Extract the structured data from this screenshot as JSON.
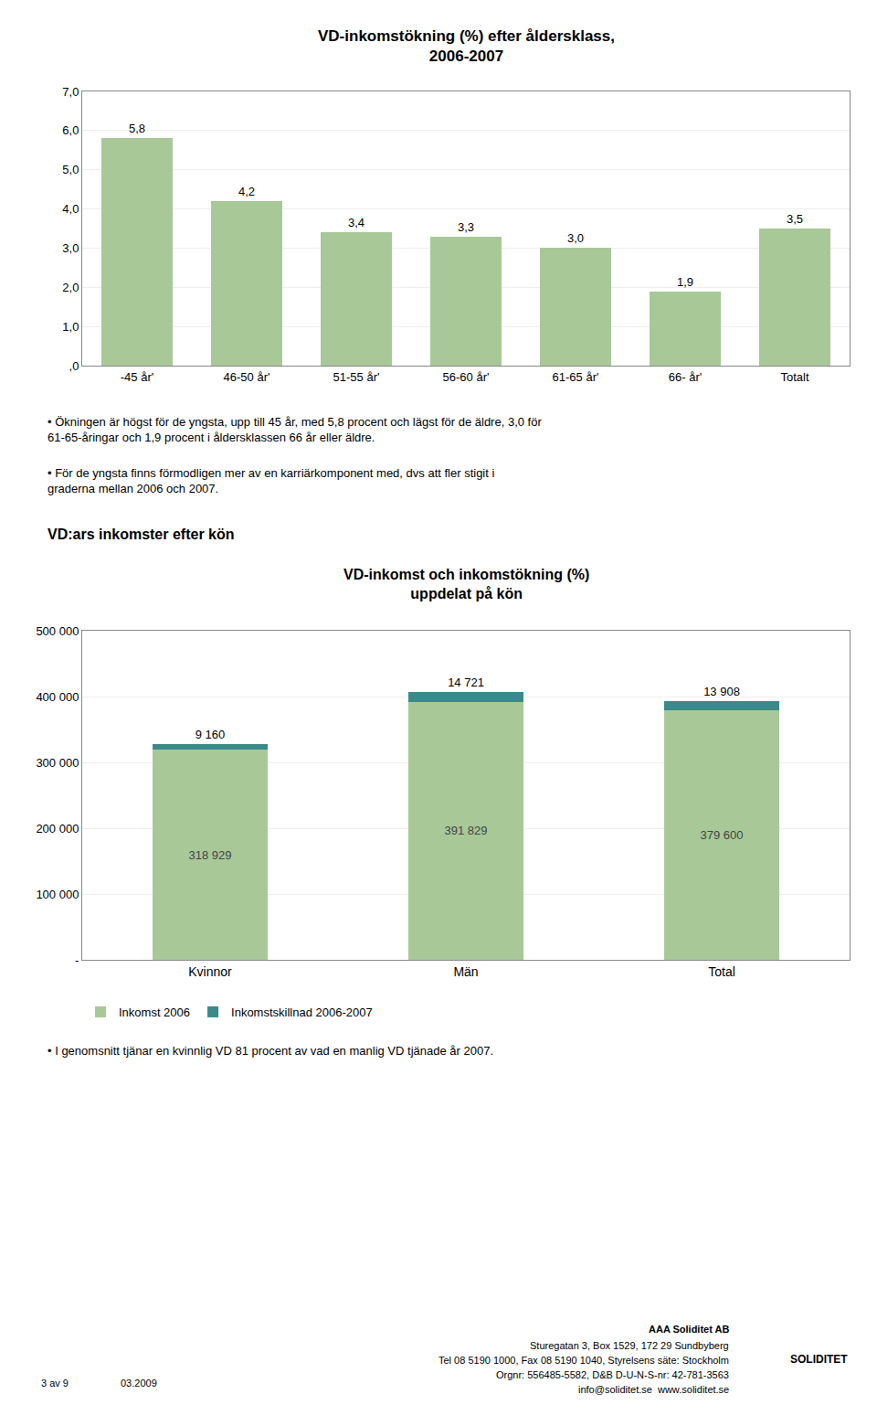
{
  "chart_data": [
    {
      "type": "bar",
      "title": "VD-inkomstökning (%) efter åldersklass,\n2006-2007",
      "categories": [
        "-45 år'",
        "46-50 år'",
        "51-55 år'",
        "56-60 år'",
        "61-65 år'",
        "66- år'",
        "Totalt"
      ],
      "values": [
        5.8,
        4.2,
        3.4,
        3.3,
        3.0,
        1.9,
        3.5
      ],
      "value_labels": [
        "5,8",
        "4,2",
        "3,4",
        "3,3",
        "3,0",
        "1,9",
        "3,5"
      ],
      "data_labels": true,
      "color": "#a8c898",
      "ylim": [
        0,
        7.0
      ],
      "yticks": [
        {
          "value": 0,
          "label": ",0"
        },
        {
          "value": 1,
          "label": "1,0"
        },
        {
          "value": 2,
          "label": "2,0"
        },
        {
          "value": 3,
          "label": "3,0"
        },
        {
          "value": 4,
          "label": "4,0"
        },
        {
          "value": 5,
          "label": "5,0"
        },
        {
          "value": 6,
          "label": "6,0"
        },
        {
          "value": 7,
          "label": "7,0"
        }
      ],
      "grid": true,
      "annotations": [
        "• Ökningen är högst för de yngsta, upp till 45 år, med 5,8 procent och lägst för de äldre, 3,0 för\n61-65-åringar och 1,9 procent i åldersklassen 66 år eller äldre.",
        "• För de yngsta finns förmodligen mer av en karriärkomponent med, dvs att fler stigit i\ngraderna mellan 2006 och 2007."
      ]
    },
    {
      "type": "bar",
      "title": "VD-inkomst och inkomstökning (%)\nuppdelat på kön",
      "categories": [
        "Kvinnor",
        "Män",
        "Total"
      ],
      "stacked": true,
      "series": [
        {
          "name": "Inkomst 2006",
          "color": "#a8c898",
          "values": [
            318929,
            391829,
            379600
          ],
          "value_labels": [
            "318 929",
            "391 829",
            "379 600"
          ]
        },
        {
          "name": "Inkomstskillnad 2006-2007",
          "color": "#3a8a8a",
          "values": [
            9160,
            14721,
            13908
          ],
          "value_labels": [
            "9 160",
            "14 721",
            "13 908"
          ]
        }
      ],
      "data_labels": true,
      "ylim": [
        0,
        500000
      ],
      "yticks": [
        {
          "value": 0,
          "label": "-"
        },
        {
          "value": 100000,
          "label": "100 000"
        },
        {
          "value": 200000,
          "label": "200 000"
        },
        {
          "value": 300000,
          "label": "300 000"
        },
        {
          "value": 400000,
          "label": "400 000"
        },
        {
          "value": 500000,
          "label": "500 000"
        }
      ],
      "grid": true,
      "legend": "bottom",
      "annotations": [
        "VD:ars inkomster efter kön",
        "• I genomsnitt tjänar en kvinnlig VD 81 procent av vad en manlig VD tjänade år 2007.",
        "SOLIDITET",
        "AAA Soliditet AB",
        "Sturegatan 3, Box 1529, 172 29 Sundbyberg",
        "Tel 08 5190 1000, Fax 08 5190 1040, Styrelsens säte: Stockholm",
        "Orgnr: 556485-5582, D&B D-U-N-S-nr: 42-781-3563",
        "info@soliditet.se  www.soliditet.se",
        "3 av 9",
        "03.2009"
      ]
    }
  ]
}
